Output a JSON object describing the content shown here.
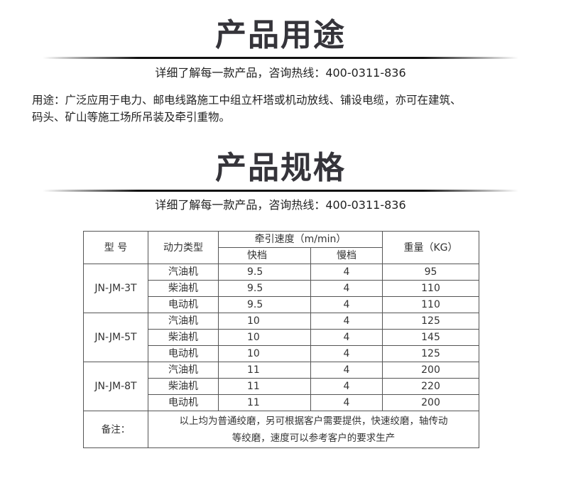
{
  "section1": {
    "title": "产品用途",
    "subtitle": "详细了解每一款产品，咨询热线：400-0311-836",
    "usage_line1": "用途：广泛应用于电力、邮电线路施工中组立杆塔或机动放线、铺设电缆，亦可在建筑、",
    "usage_line2": "码头、矿山等施工场所吊装及牵引重物。"
  },
  "section2": {
    "title": "产品规格",
    "subtitle": "详细了解每一款产品，咨询热线：400-0311-836"
  },
  "table": {
    "headers": {
      "model": "型  号",
      "power": "动力类型",
      "speed": "牵引速度（m/min）",
      "fast": "快档",
      "slow": "慢档",
      "weight": "重量（KG）"
    },
    "groups": [
      {
        "model": "JN-JM-3T",
        "rows": [
          {
            "power": "汽油机",
            "fast": "9.5",
            "slow": "4",
            "weight": "95"
          },
          {
            "power": "柴油机",
            "fast": "9.5",
            "slow": "4",
            "weight": "110"
          },
          {
            "power": "电动机",
            "fast": "9.5",
            "slow": "4",
            "weight": "110"
          }
        ]
      },
      {
        "model": "JN-JM-5T",
        "rows": [
          {
            "power": "汽油机",
            "fast": "10",
            "slow": "4",
            "weight": "125"
          },
          {
            "power": "柴油机",
            "fast": "10",
            "slow": "4",
            "weight": "145"
          },
          {
            "power": "电动机",
            "fast": "10",
            "slow": "4",
            "weight": "125"
          }
        ]
      },
      {
        "model": "JN-JM-8T",
        "rows": [
          {
            "power": "汽油机",
            "fast": "11",
            "slow": "4",
            "weight": "200"
          },
          {
            "power": "柴油机",
            "fast": "11",
            "slow": "4",
            "weight": "220"
          },
          {
            "power": "电动机",
            "fast": "11",
            "slow": "4",
            "weight": "200"
          }
        ]
      }
    ],
    "note_label": "备注：",
    "note_line1": "以上均为普通绞磨，另可根据客户需要提供，快速绞磨，轴传动",
    "note_line2": "等绞磨，速度可以参考客户的要求生产"
  }
}
